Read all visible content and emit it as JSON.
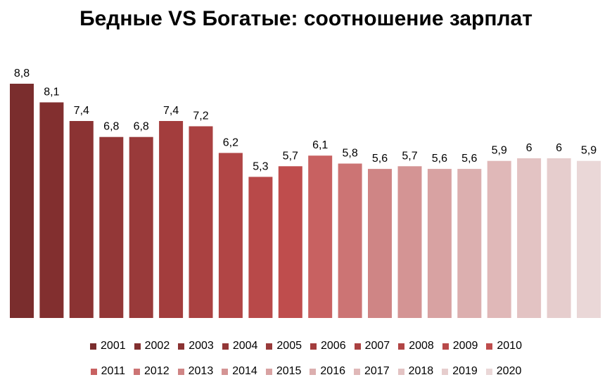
{
  "chart_data": {
    "type": "bar",
    "title": "Бедные VS Богатые: соотношение зарплат",
    "xlabel": "",
    "ylabel": "",
    "ylim": [
      0,
      8.8
    ],
    "grid": false,
    "legend_placement": "bottom",
    "categories": [
      "2001",
      "2002",
      "2003",
      "2004",
      "2005",
      "2006",
      "2007",
      "2008",
      "2009",
      "2010",
      "2011",
      "2012",
      "2013",
      "2014",
      "2015",
      "2016",
      "2017",
      "2018",
      "2019",
      "2020"
    ],
    "values": [
      8.8,
      8.1,
      7.4,
      6.8,
      6.8,
      7.4,
      7.2,
      6.2,
      5.3,
      5.7,
      6.1,
      5.8,
      5.6,
      5.7,
      5.6,
      5.6,
      5.9,
      6,
      6,
      5.9
    ],
    "value_labels": [
      "8,8",
      "8,1",
      "7,4",
      "6,8",
      "6,8",
      "7,4",
      "7,2",
      "6,2",
      "5,3",
      "5,7",
      "6,1",
      "5,8",
      "5,6",
      "5,7",
      "5,6",
      "5,6",
      "5,9",
      "6",
      "6",
      "5,9"
    ],
    "colors": [
      "#7a2d2d",
      "#822f2f",
      "#8b3333",
      "#933737",
      "#993a3a",
      "#a33d3d",
      "#aa4141",
      "#b14545",
      "#b84949",
      "#bf4d4d",
      "#c86161",
      "#cc7474",
      "#cf8585",
      "#d49494",
      "#d8a2a2",
      "#dcafaf",
      "#e0b8b8",
      "#e3c3c3",
      "#e6cdcd",
      "#ead7d7"
    ]
  }
}
